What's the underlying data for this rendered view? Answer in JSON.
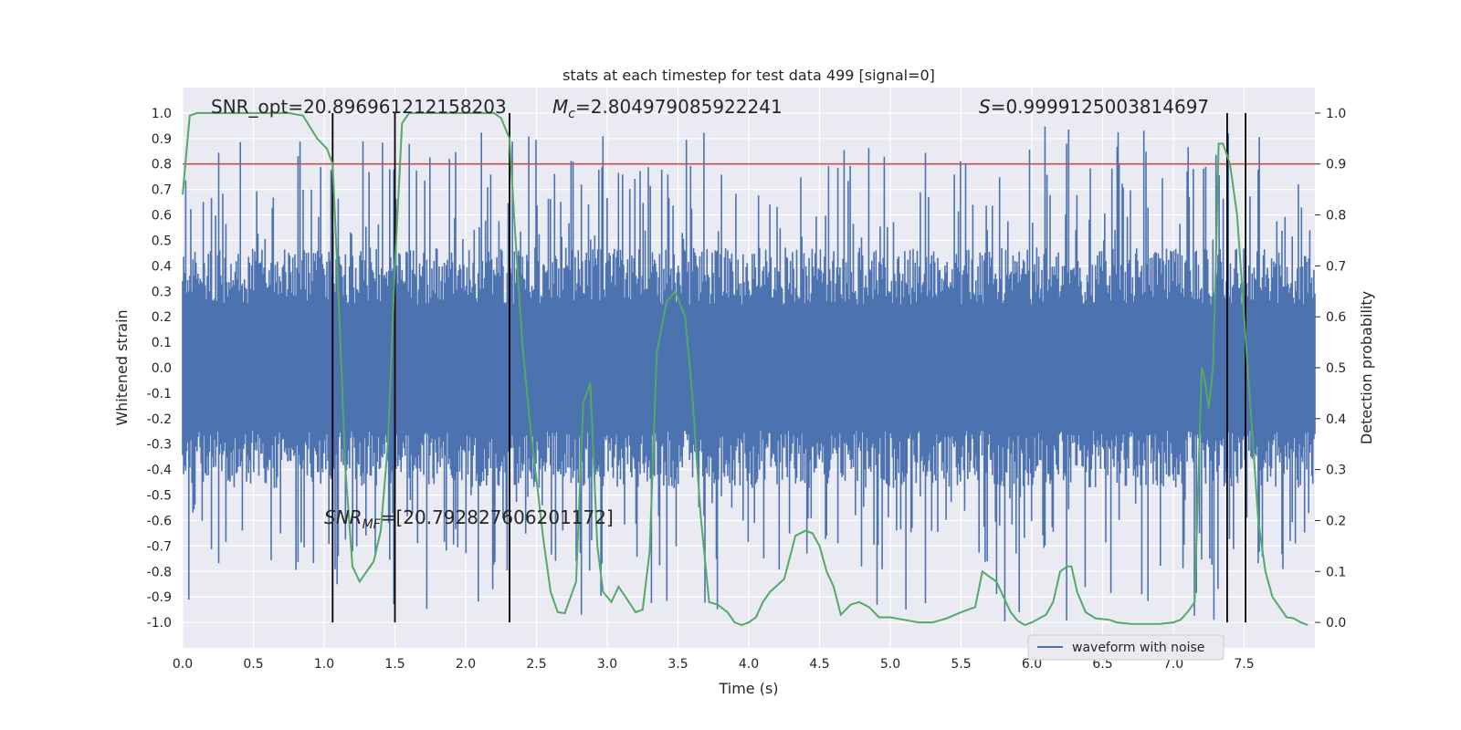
{
  "chart_data": {
    "type": "line",
    "title": "stats at each timestep for test data 499 [signal=0]",
    "xlabel": "Time (s)",
    "ylabel": "Whitened strain",
    "y2label": "Detection probability",
    "xlim": [
      0,
      8
    ],
    "ylim": [
      -1.1,
      1.1
    ],
    "y2lim": [
      -0.05,
      1.05
    ],
    "x_ticks": [
      "0.0",
      "0.5",
      "1.0",
      "1.5",
      "2.0",
      "2.5",
      "3.0",
      "3.5",
      "4.0",
      "4.5",
      "5.0",
      "5.5",
      "6.0",
      "6.5",
      "7.0",
      "7.5"
    ],
    "y_ticks": [
      "1.0",
      "0.9",
      "0.8",
      "0.7",
      "0.6",
      "0.5",
      "0.4",
      "0.3",
      "0.2",
      "0.1",
      "0.0",
      "-0.1",
      "-0.2",
      "-0.3",
      "-0.4",
      "-0.5",
      "-0.6",
      "-0.7",
      "-0.8",
      "-0.9",
      "-1.0"
    ],
    "y2_ticks": [
      "1.0",
      "0.9",
      "0.8",
      "0.7",
      "0.6",
      "0.5",
      "0.4",
      "0.3",
      "0.2",
      "0.1",
      "0.0"
    ],
    "threshold": 0.9,
    "vertical_lines_x": [
      1.06,
      1.5,
      2.31,
      7.38,
      7.51
    ],
    "waveform": {
      "name": "waveform with noise",
      "color": "#4c72b0",
      "typical_range": [
        -0.45,
        0.45
      ],
      "peak_range": [
        -1.0,
        0.95
      ],
      "samples_estimated": 1100
    },
    "detection_probability": {
      "color": "#55a868",
      "x": [
        0.0,
        0.05,
        0.1,
        0.2,
        0.4,
        0.6,
        0.75,
        0.85,
        0.95,
        1.02,
        1.06,
        1.1,
        1.15,
        1.2,
        1.25,
        1.3,
        1.35,
        1.4,
        1.45,
        1.5,
        1.55,
        1.6,
        1.7,
        1.8,
        2.0,
        2.2,
        2.25,
        2.31,
        2.35,
        2.4,
        2.45,
        2.5,
        2.55,
        2.6,
        2.65,
        2.7,
        2.78,
        2.83,
        2.88,
        2.93,
        2.97,
        3.03,
        3.08,
        3.13,
        3.2,
        3.25,
        3.3,
        3.35,
        3.42,
        3.48,
        3.55,
        3.6,
        3.66,
        3.72,
        3.78,
        3.85,
        3.9,
        3.95,
        4.0,
        4.05,
        4.1,
        4.15,
        4.25,
        4.33,
        4.4,
        4.45,
        4.5,
        4.55,
        4.6,
        4.65,
        4.72,
        4.78,
        4.85,
        4.92,
        5.0,
        5.1,
        5.2,
        5.3,
        5.4,
        5.5,
        5.6,
        5.65,
        5.7,
        5.75,
        5.8,
        5.85,
        5.9,
        5.95,
        6.0,
        6.1,
        6.15,
        6.2,
        6.25,
        6.28,
        6.32,
        6.38,
        6.45,
        6.55,
        6.6,
        6.7,
        6.8,
        6.9,
        7.0,
        7.05,
        7.1,
        7.15,
        7.2,
        7.22,
        7.25,
        7.28,
        7.3,
        7.32,
        7.35,
        7.4,
        7.45,
        7.5,
        7.55,
        7.6,
        7.65,
        7.7,
        7.75,
        7.8,
        7.85,
        7.9,
        7.93,
        7.95
      ],
      "y": [
        0.84,
        0.995,
        1.0,
        1.0,
        1.0,
        1.0,
        1.0,
        0.995,
        0.95,
        0.93,
        0.9,
        0.65,
        0.3,
        0.11,
        0.08,
        0.1,
        0.12,
        0.18,
        0.35,
        0.7,
        0.98,
        1.0,
        1.0,
        1.0,
        1.0,
        1.0,
        0.99,
        0.95,
        0.76,
        0.55,
        0.4,
        0.28,
        0.16,
        0.06,
        0.02,
        0.018,
        0.08,
        0.43,
        0.47,
        0.15,
        0.06,
        0.04,
        0.07,
        0.05,
        0.02,
        0.025,
        0.14,
        0.53,
        0.63,
        0.65,
        0.6,
        0.45,
        0.21,
        0.04,
        0.035,
        0.02,
        0.0,
        -0.005,
        0.0,
        0.01,
        0.04,
        0.06,
        0.085,
        0.17,
        0.18,
        0.175,
        0.15,
        0.1,
        0.07,
        0.015,
        0.035,
        0.04,
        0.03,
        0.01,
        0.01,
        0.005,
        0.0,
        0.0,
        0.008,
        0.02,
        0.03,
        0.1,
        0.09,
        0.08,
        0.05,
        0.02,
        0.003,
        -0.005,
        0.0,
        0.015,
        0.04,
        0.1,
        0.11,
        0.11,
        0.06,
        0.02,
        0.008,
        0.005,
        0.0,
        -0.003,
        -0.003,
        -0.003,
        0.0,
        0.005,
        0.02,
        0.04,
        0.5,
        0.48,
        0.42,
        0.5,
        0.7,
        0.94,
        0.94,
        0.9,
        0.8,
        0.6,
        0.4,
        0.2,
        0.1,
        0.05,
        0.03,
        0.01,
        0.008,
        0.0,
        -0.003,
        -0.005
      ]
    },
    "annotations": {
      "snr_opt": "SNR_opt=20.896961212158203",
      "mc_symbol": "M",
      "mc_sub": "c",
      "mc_value": "=2.804979085922241",
      "s_symbol": "S",
      "s_value": "=0.9999125003814697",
      "snr_mf_symbol": "SNR",
      "snr_mf_sub": "MF",
      "snr_mf_value": "=[20.792827606201172]"
    },
    "legend": {
      "position": "lower-right",
      "label": "waveform with noise"
    }
  }
}
